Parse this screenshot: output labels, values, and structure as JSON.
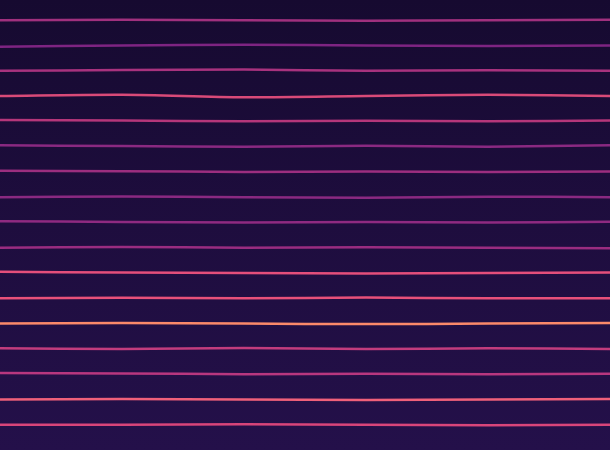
{
  "chart_data": {
    "type": "line",
    "tick_labels": false,
    "grid": false,
    "xlim": [
      0,
      10
    ],
    "ylim": [
      0,
      17.8
    ],
    "x": [
      0,
      2,
      4,
      6,
      8,
      10
    ],
    "series": [
      {
        "color": "#d8457a",
        "values": [
          1.0,
          1.0,
          1.02,
          1.0,
          0.98,
          1.0
        ]
      },
      {
        "color": "#f0607a",
        "values": [
          2.0,
          2.02,
          2.0,
          1.98,
          2.0,
          2.02
        ]
      },
      {
        "color": "#b8377f",
        "values": [
          3.05,
          3.03,
          3.0,
          3.02,
          3.0,
          3.02
        ]
      },
      {
        "color": "#c23c7d",
        "values": [
          4.02,
          4.0,
          4.03,
          4.0,
          4.02,
          4.0
        ]
      },
      {
        "color": "#fb8a6a",
        "values": [
          5.0,
          5.02,
          5.0,
          4.98,
          5.0,
          5.02
        ]
      },
      {
        "color": "#e8507a",
        "values": [
          6.0,
          6.02,
          6.0,
          6.03,
          6.0,
          6.0
        ]
      },
      {
        "color": "#e44f7b",
        "values": [
          7.05,
          7.02,
          7.0,
          6.98,
          7.0,
          7.02
        ]
      },
      {
        "color": "#9a2c80",
        "values": [
          8.0,
          8.03,
          8.0,
          8.02,
          8.0,
          7.98
        ]
      },
      {
        "color": "#8f2a81",
        "values": [
          9.05,
          9.02,
          9.0,
          9.02,
          9.0,
          9.03
        ]
      },
      {
        "color": "#8a2981",
        "values": [
          10.0,
          10.03,
          10.0,
          9.98,
          10.02,
          10.0
        ]
      },
      {
        "color": "#9c2e7f",
        "values": [
          11.05,
          11.03,
          11.0,
          11.02,
          11.0,
          11.02
        ]
      },
      {
        "color": "#8a2981",
        "values": [
          12.05,
          12.02,
          12.0,
          12.03,
          12.0,
          12.05
        ]
      },
      {
        "color": "#b5367a",
        "values": [
          13.05,
          13.03,
          13.0,
          13.02,
          13.0,
          13.03
        ]
      },
      {
        "color": "#d84a78",
        "values": [
          14.0,
          14.05,
          13.95,
          14.0,
          14.05,
          14.0
        ]
      },
      {
        "color": "#a8327e",
        "values": [
          15.0,
          15.03,
          15.05,
          15.0,
          15.02,
          15.0
        ]
      },
      {
        "color": "#7e2482",
        "values": [
          15.95,
          16.0,
          16.03,
          16.0,
          15.98,
          16.0
        ]
      },
      {
        "color": "#a0307e",
        "values": [
          17.0,
          17.02,
          17.0,
          16.98,
          17.0,
          17.02
        ]
      }
    ]
  }
}
